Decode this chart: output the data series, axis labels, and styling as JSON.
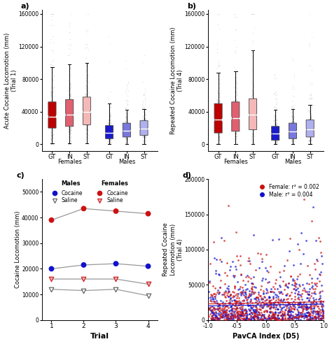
{
  "panel_a_title": "a)",
  "panel_b_title": "b)",
  "panel_c_title": "c)",
  "panel_d_title": "d)",
  "panel_a_ylabel": "Acute Cocaine Locomotion (mm)\n(Trial 1)",
  "panel_b_ylabel": "Repeated Cocaine Locomotion (mm)\n(Trial 4)",
  "panel_c_ylabel": "Cocaine Locomotion (mm)",
  "panel_d_ylabel": "Repeated Cocaine\nLocomotion (mm)\n(Trial 4)",
  "panel_c_xlabel": "Trial",
  "panel_d_xlabel": "PavCA Index (D5)",
  "group_labels": [
    "GT",
    "IN",
    "ST",
    "GT",
    "IN",
    "ST"
  ],
  "box_colors_a": [
    "#be0000",
    "#e06070",
    "#f5b8b8",
    "#1a1acc",
    "#7878dd",
    "#b0b0ee"
  ],
  "box_colors_b": [
    "#be0000",
    "#e06070",
    "#f5b8b8",
    "#1a1acc",
    "#7878dd",
    "#b0b0ee"
  ],
  "panel_a_medians": [
    34000,
    36000,
    40000,
    14000,
    17000,
    19000
  ],
  "panel_a_q1": [
    20000,
    22000,
    24000,
    7000,
    9000,
    11000
  ],
  "panel_a_q3": [
    52000,
    55000,
    58000,
    23000,
    26000,
    29000
  ],
  "panel_a_whisker_low": [
    1000,
    1000,
    1000,
    500,
    500,
    500
  ],
  "panel_a_whisker_high": [
    95000,
    98000,
    100000,
    50000,
    42000,
    43000
  ],
  "panel_b_medians": [
    30000,
    32000,
    36000,
    13000,
    16000,
    18000
  ],
  "panel_b_q1": [
    14000,
    16000,
    18000,
    5000,
    7000,
    9000
  ],
  "panel_b_q3": [
    50000,
    52000,
    56000,
    22000,
    26000,
    30000
  ],
  "panel_b_whisker_low": [
    500,
    500,
    500,
    200,
    200,
    200
  ],
  "panel_b_whisker_high": [
    88000,
    90000,
    115000,
    42000,
    43000,
    48000
  ],
  "panel_c_female_cocaine": [
    39000,
    43500,
    42500,
    41500
  ],
  "panel_c_male_cocaine": [
    20000,
    21500,
    22000,
    21000
  ],
  "panel_c_female_saline": [
    16000,
    16000,
    16000,
    14000
  ],
  "panel_c_male_saline": [
    12000,
    11500,
    12000,
    9500
  ],
  "panel_c_trials": [
    1,
    2,
    3,
    4
  ],
  "panel_c_ylim": [
    0,
    55000
  ],
  "panel_c_yticks": [
    0,
    10000,
    20000,
    30000,
    40000,
    50000
  ],
  "panel_d_female_color": "#cc1111",
  "panel_d_male_color": "#1111cc",
  "panel_d_female_r2": "0.002",
  "panel_d_male_r2": "0.004",
  "panel_d_xlim": [
    -1.0,
    1.0
  ],
  "panel_d_ylim": [
    0,
    200000
  ],
  "panel_d_yticks": [
    0,
    50000,
    100000,
    150000,
    200000
  ],
  "panel_d_xticks": [
    -1.0,
    -0.5,
    0.0,
    0.5,
    1.0
  ],
  "background_color": "#ffffff",
  "box_width": 0.55
}
